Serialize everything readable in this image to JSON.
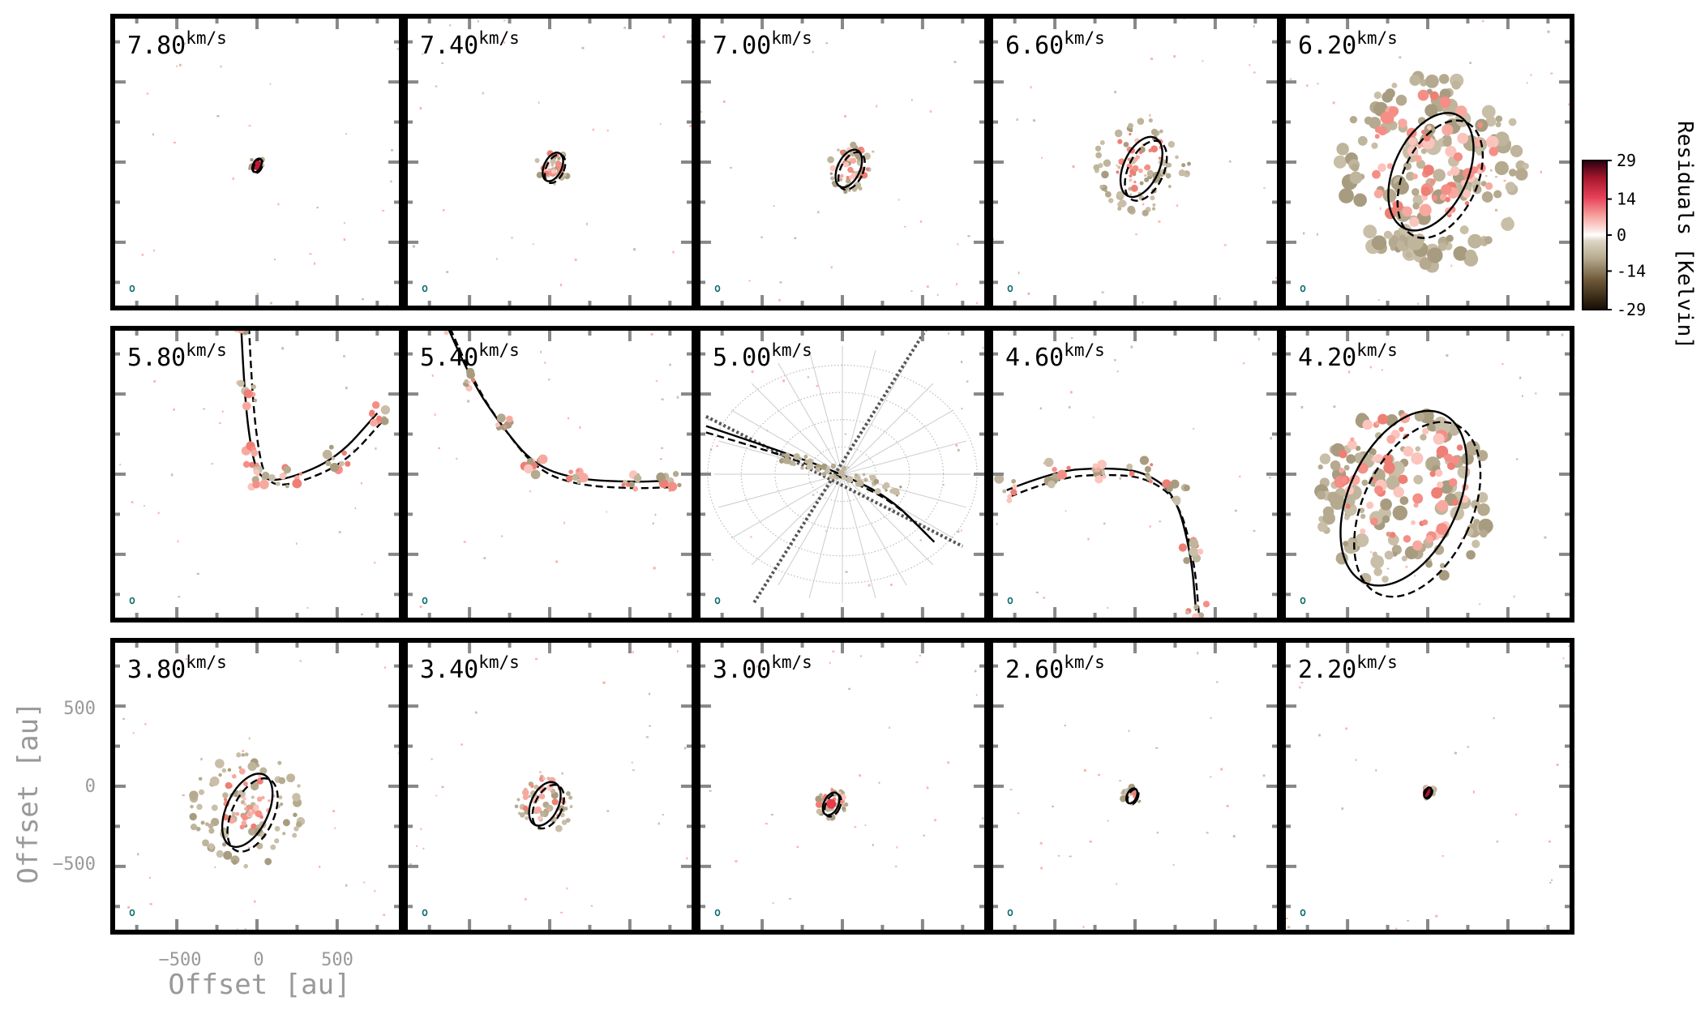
{
  "chart_data": {
    "type": "channel-map",
    "title": "",
    "velocity_unit": "km/s",
    "channels": [
      "7.80",
      "7.40",
      "7.00",
      "6.60",
      "6.20",
      "5.80",
      "5.40",
      "5.00",
      "4.60",
      "4.20",
      "3.80",
      "3.40",
      "3.00",
      "2.60",
      "2.20"
    ],
    "xlabel": "Offset [au]",
    "ylabel": "Offset [au]",
    "xticks": [
      -500,
      0,
      500
    ],
    "yticks": [
      500,
      0,
      -500
    ],
    "xtick_labels": [
      "−500",
      "0",
      "500"
    ],
    "ytick_labels": [
      "500",
      "0",
      "−500"
    ],
    "axis_range": [
      -900,
      900
    ],
    "colorbar": {
      "label": "Residuals [Kelvin]",
      "ticks": [
        29,
        14,
        0,
        -14,
        -29
      ],
      "tick_labels": [
        "29",
        "14",
        "0",
        "-14",
        "-29"
      ],
      "range": [
        -29,
        29
      ]
    },
    "model_curves": [
      "solid",
      "dashed"
    ],
    "beam": "ellipse at lower-left of each panel"
  }
}
